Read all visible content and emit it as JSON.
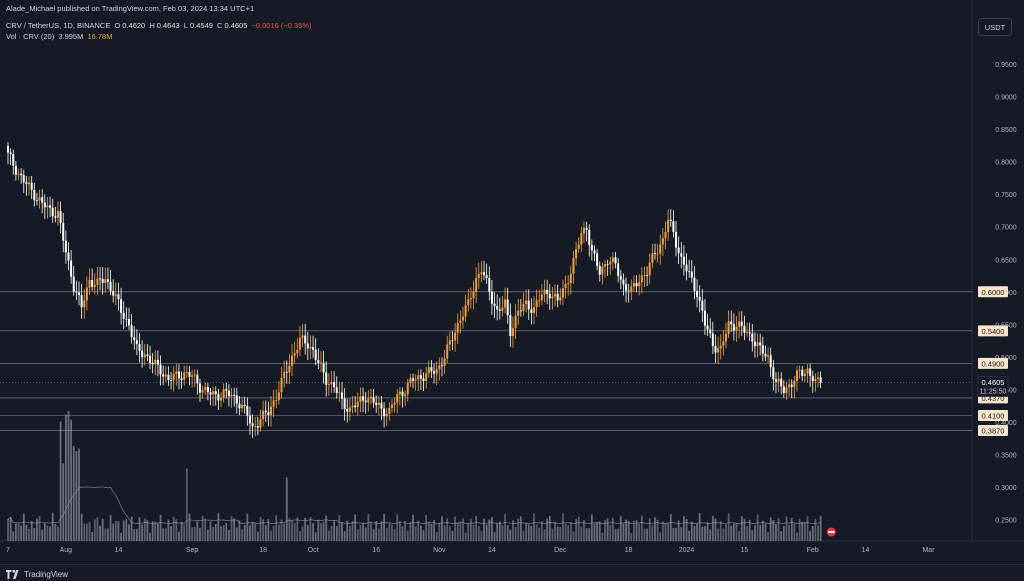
{
  "header": {
    "publisher_line": "Alade_Michael published on TradingView.com, Feb 03, 2024 13:34 UTC+1",
    "symbol": "CRV / TetherUS, 1D, BINANCE",
    "o_label": "O",
    "o_value": "0.4620",
    "h_label": "H",
    "h_value": "0.4643",
    "l_label": "L",
    "l_value": "0.4549",
    "c_label": "C",
    "c_value": "0.4605",
    "change": "−0.0016 (−0.35%)",
    "vol_label": "Vol · CRV (20)",
    "vol_ma": "3.995M",
    "vol_value": "16.78M"
  },
  "currency_button": "USDT",
  "footer": {
    "brand": "TradingView"
  },
  "colors": {
    "background": "#161a25",
    "up": "#f0a032",
    "down": "#ffffff",
    "level_badge": "#f7e6cc",
    "grid_line": "#e0e3eb",
    "text": "#d1d4dc"
  },
  "chart_data": {
    "type": "candlestick",
    "pair": "CRV / TetherUS",
    "timeframe": "1D",
    "exchange": "BINANCE",
    "ylim": [
      0.225,
      1.0
    ],
    "y_ticks": [
      "0.9500",
      "0.9000",
      "0.8500",
      "0.8000",
      "0.7500",
      "0.7000",
      "0.6500",
      "0.6000",
      "0.5500",
      "0.5000",
      "0.4500",
      "0.4000",
      "0.3500",
      "0.3000",
      "0.2500"
    ],
    "x_ticks": [
      "7",
      "Aug",
      "14",
      "Sep",
      "18",
      "Oct",
      "16",
      "Nov",
      "14",
      "Dec",
      "18",
      "2024",
      "15",
      "Feb",
      "14",
      "Mar"
    ],
    "horizontal_levels": [
      {
        "price": 0.6,
        "label": "0.6000"
      },
      {
        "price": 0.54,
        "label": "0.5400"
      },
      {
        "price": 0.49,
        "label": "0.4900"
      },
      {
        "price": 0.437,
        "label": "0.4370"
      },
      {
        "price": 0.41,
        "label": "0.4100"
      },
      {
        "price": 0.387,
        "label": "0.3870"
      }
    ],
    "last_price": {
      "price": 0.4605,
      "label": "0.4605",
      "countdown": "11:25:50"
    },
    "close_path": [
      [
        0,
        0.81
      ],
      [
        5,
        0.775
      ],
      [
        10,
        0.75
      ],
      [
        13,
        0.735
      ],
      [
        16,
        0.725
      ],
      [
        19,
        0.72
      ],
      [
        22,
        0.66
      ],
      [
        25,
        0.61
      ],
      [
        28,
        0.575
      ],
      [
        31,
        0.618
      ],
      [
        34,
        0.612
      ],
      [
        37,
        0.62
      ],
      [
        40,
        0.6
      ],
      [
        43,
        0.57
      ],
      [
        46,
        0.55
      ],
      [
        49,
        0.51
      ],
      [
        52,
        0.505
      ],
      [
        55,
        0.49
      ],
      [
        58,
        0.48
      ],
      [
        61,
        0.465
      ],
      [
        64,
        0.47
      ],
      [
        67,
        0.475
      ],
      [
        70,
        0.47
      ],
      [
        73,
        0.455
      ],
      [
        76,
        0.445
      ],
      [
        79,
        0.44
      ],
      [
        82,
        0.445
      ],
      [
        85,
        0.44
      ],
      [
        88,
        0.43
      ],
      [
        91,
        0.41
      ],
      [
        93,
        0.39
      ],
      [
        96,
        0.405
      ],
      [
        99,
        0.415
      ],
      [
        102,
        0.44
      ],
      [
        105,
        0.47
      ],
      [
        108,
        0.5
      ],
      [
        111,
        0.525
      ],
      [
        114,
        0.52
      ],
      [
        116,
        0.51
      ],
      [
        118,
        0.49
      ],
      [
        121,
        0.465
      ],
      [
        124,
        0.455
      ],
      [
        127,
        0.43
      ],
      [
        130,
        0.42
      ],
      [
        133,
        0.428
      ],
      [
        136,
        0.44
      ],
      [
        139,
        0.43
      ],
      [
        142,
        0.42
      ],
      [
        145,
        0.415
      ],
      [
        148,
        0.44
      ],
      [
        151,
        0.45
      ],
      [
        154,
        0.465
      ],
      [
        157,
        0.47
      ],
      [
        160,
        0.475
      ],
      [
        163,
        0.48
      ],
      [
        166,
        0.5
      ],
      [
        169,
        0.53
      ],
      [
        172,
        0.56
      ],
      [
        175,
        0.58
      ],
      [
        178,
        0.62
      ],
      [
        180,
        0.635
      ],
      [
        183,
        0.6
      ],
      [
        186,
        0.57
      ],
      [
        189,
        0.58
      ],
      [
        191,
        0.54
      ],
      [
        194,
        0.57
      ],
      [
        197,
        0.58
      ],
      [
        200,
        0.575
      ],
      [
        203,
        0.595
      ],
      [
        206,
        0.6
      ],
      [
        209,
        0.585
      ],
      [
        212,
        0.61
      ],
      [
        215,
        0.645
      ],
      [
        218,
        0.69
      ],
      [
        220,
        0.7
      ],
      [
        222,
        0.66
      ],
      [
        225,
        0.63
      ],
      [
        228,
        0.65
      ],
      [
        231,
        0.64
      ],
      [
        234,
        0.61
      ],
      [
        237,
        0.6
      ],
      [
        240,
        0.62
      ],
      [
        243,
        0.63
      ],
      [
        246,
        0.66
      ],
      [
        249,
        0.68
      ],
      [
        251,
        0.71
      ],
      [
        253,
        0.69
      ],
      [
        256,
        0.65
      ],
      [
        259,
        0.625
      ],
      [
        262,
        0.6
      ],
      [
        265,
        0.55
      ],
      [
        268,
        0.52
      ],
      [
        271,
        0.51
      ],
      [
        274,
        0.55
      ],
      [
        277,
        0.55
      ],
      [
        280,
        0.54
      ],
      [
        283,
        0.53
      ],
      [
        286,
        0.51
      ],
      [
        289,
        0.5
      ],
      [
        292,
        0.46
      ],
      [
        295,
        0.45
      ],
      [
        298,
        0.46
      ],
      [
        301,
        0.475
      ],
      [
        304,
        0.48
      ],
      [
        307,
        0.46
      ],
      [
        309,
        0.4605
      ]
    ],
    "volume_series": "daily CRV volume bars with 20-period moving average"
  }
}
